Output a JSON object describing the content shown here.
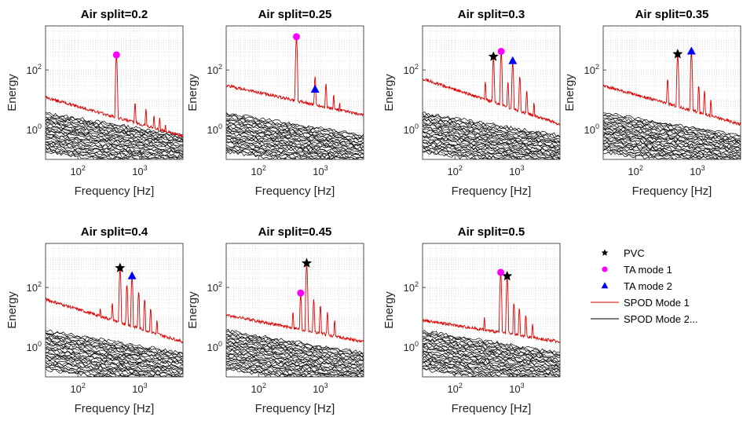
{
  "figure": {
    "xlabel": "Frequency [Hz]",
    "ylabel": "Energy",
    "xlim": [
      30,
      5000
    ],
    "ylim": [
      0.1,
      3000
    ],
    "xtick_values": [
      100,
      1000
    ],
    "xtick_labels": [
      {
        "base": "10",
        "exp": "2"
      },
      {
        "base": "10",
        "exp": "3"
      }
    ],
    "ytick_values": [
      1,
      100
    ],
    "ytick_labels": [
      {
        "base": "10",
        "exp": "0"
      },
      {
        "base": "10",
        "exp": "2"
      }
    ],
    "colors": {
      "spod_mode1": "#dd0000",
      "spod_mode2": "#000000",
      "pvc": "#000000",
      "ta_mode1": "#ff00ff",
      "ta_mode2": "#0000ff",
      "grid": "#cfcfcf"
    }
  },
  "legend": {
    "placement": "right of last row",
    "entries": [
      {
        "label": "PVC",
        "marker": "star",
        "color": "#000000"
      },
      {
        "label": "TA mode 1",
        "marker": "circle",
        "color": "#ff00ff"
      },
      {
        "label": "TA mode 2",
        "marker": "triangle",
        "color": "#0000ff"
      },
      {
        "label": "SPOD Mode 1",
        "marker": "line",
        "color": "#dd0000"
      },
      {
        "label": "SPOD Mode 2...",
        "marker": "line",
        "color": "#000000"
      }
    ]
  },
  "chart_data": [
    {
      "type": "line",
      "title": "Air split=0.2",
      "xlabel": "Frequency [Hz]",
      "ylabel": "Energy",
      "xscale": "log",
      "yscale": "log",
      "spod_mode1": {
        "baseline_start": 12,
        "baseline_end": 0.6,
        "peaks": [
          {
            "f": 420,
            "amp": 300
          },
          {
            "f": 840,
            "amp": 8
          },
          {
            "f": 1260,
            "amp": 5
          },
          {
            "f": 1700,
            "amp": 3
          },
          {
            "f": 2100,
            "amp": 2.5
          },
          {
            "f": 2600,
            "amp": 1.5
          }
        ]
      },
      "pvc": null,
      "ta_mode1": {
        "f": 420,
        "energy": 320
      },
      "ta_mode2": null
    },
    {
      "type": "line",
      "title": "Air split=0.25",
      "xlabel": "Frequency [Hz]",
      "ylabel": "Energy",
      "xscale": "log",
      "yscale": "log",
      "spod_mode1": {
        "baseline_start": 30,
        "baseline_end": 3,
        "peaks": [
          {
            "f": 410,
            "amp": 1200
          },
          {
            "f": 820,
            "amp": 60
          },
          {
            "f": 1230,
            "amp": 35
          },
          {
            "f": 1640,
            "amp": 15
          },
          {
            "f": 2050,
            "amp": 8
          }
        ]
      },
      "pvc": null,
      "ta_mode1": {
        "f": 410,
        "energy": 1300
      },
      "ta_mode2": {
        "f": 820,
        "energy": 22
      }
    },
    {
      "type": "line",
      "title": "Air split=0.3",
      "xlabel": "Frequency [Hz]",
      "ylabel": "Energy",
      "xscale": "log",
      "yscale": "log",
      "spod_mode1": {
        "baseline_start": 50,
        "baseline_end": 1.5,
        "peaks": [
          {
            "f": 310,
            "amp": 40
          },
          {
            "f": 420,
            "amp": 250
          },
          {
            "f": 560,
            "amp": 380
          },
          {
            "f": 720,
            "amp": 40
          },
          {
            "f": 860,
            "amp": 180
          },
          {
            "f": 1120,
            "amp": 60
          },
          {
            "f": 1450,
            "amp": 20
          },
          {
            "f": 1900,
            "amp": 8
          }
        ]
      },
      "pvc": {
        "f": 420,
        "energy": 280
      },
      "ta_mode1": {
        "f": 560,
        "energy": 420
      },
      "ta_mode2": {
        "f": 860,
        "energy": 200
      }
    },
    {
      "type": "line",
      "title": "Air split=0.35",
      "xlabel": "Frequency [Hz]",
      "ylabel": "Energy",
      "xscale": "log",
      "yscale": "log",
      "spod_mode1": {
        "baseline_start": 30,
        "baseline_end": 1.5,
        "peaks": [
          {
            "f": 330,
            "amp": 50
          },
          {
            "f": 480,
            "amp": 320
          },
          {
            "f": 800,
            "amp": 400
          },
          {
            "f": 1050,
            "amp": 30
          },
          {
            "f": 1300,
            "amp": 20
          },
          {
            "f": 1650,
            "amp": 10
          }
        ]
      },
      "pvc": {
        "f": 480,
        "energy": 340
      },
      "ta_mode1": null,
      "ta_mode2": {
        "f": 800,
        "energy": 420
      }
    },
    {
      "type": "line",
      "title": "Air split=0.4",
      "xlabel": "Frequency [Hz]",
      "ylabel": "Energy",
      "xscale": "log",
      "yscale": "log",
      "spod_mode1": {
        "baseline_start": 40,
        "baseline_end": 1.5,
        "peaks": [
          {
            "f": 230,
            "amp": 20
          },
          {
            "f": 360,
            "amp": 30
          },
          {
            "f": 480,
            "amp": 420
          },
          {
            "f": 620,
            "amp": 120
          },
          {
            "f": 750,
            "amp": 220
          },
          {
            "f": 960,
            "amp": 70
          },
          {
            "f": 1200,
            "amp": 40
          },
          {
            "f": 1500,
            "amp": 20
          },
          {
            "f": 1900,
            "amp": 8
          }
        ]
      },
      "pvc": {
        "f": 480,
        "energy": 450
      },
      "ta_mode1": null,
      "ta_mode2": {
        "f": 750,
        "energy": 240
      }
    },
    {
      "type": "line",
      "title": "Air split=0.45",
      "xlabel": "Frequency [Hz]",
      "ylabel": "Energy",
      "xscale": "log",
      "yscale": "log",
      "spod_mode1": {
        "baseline_start": 12,
        "baseline_end": 1.5,
        "peaks": [
          {
            "f": 360,
            "amp": 15
          },
          {
            "f": 480,
            "amp": 60
          },
          {
            "f": 600,
            "amp": 600
          },
          {
            "f": 780,
            "amp": 40
          },
          {
            "f": 1000,
            "amp": 25
          },
          {
            "f": 1300,
            "amp": 15
          },
          {
            "f": 1700,
            "amp": 8
          }
        ]
      },
      "pvc": {
        "f": 600,
        "energy": 650
      },
      "ta_mode1": {
        "f": 480,
        "energy": 65
      },
      "ta_mode2": null
    },
    {
      "type": "line",
      "title": "Air split=0.5",
      "xlabel": "Frequency [Hz]",
      "ylabel": "Energy",
      "xscale": "log",
      "yscale": "log",
      "spod_mode1": {
        "baseline_start": 8,
        "baseline_end": 1.5,
        "peaks": [
          {
            "f": 300,
            "amp": 10
          },
          {
            "f": 550,
            "amp": 300
          },
          {
            "f": 700,
            "amp": 220
          },
          {
            "f": 900,
            "amp": 30
          },
          {
            "f": 1100,
            "amp": 20
          },
          {
            "f": 1400,
            "amp": 12
          },
          {
            "f": 1800,
            "amp": 6
          }
        ]
      },
      "pvc": {
        "f": 700,
        "energy": 240
      },
      "ta_mode1": {
        "f": 550,
        "energy": 320
      },
      "ta_mode2": null
    }
  ]
}
